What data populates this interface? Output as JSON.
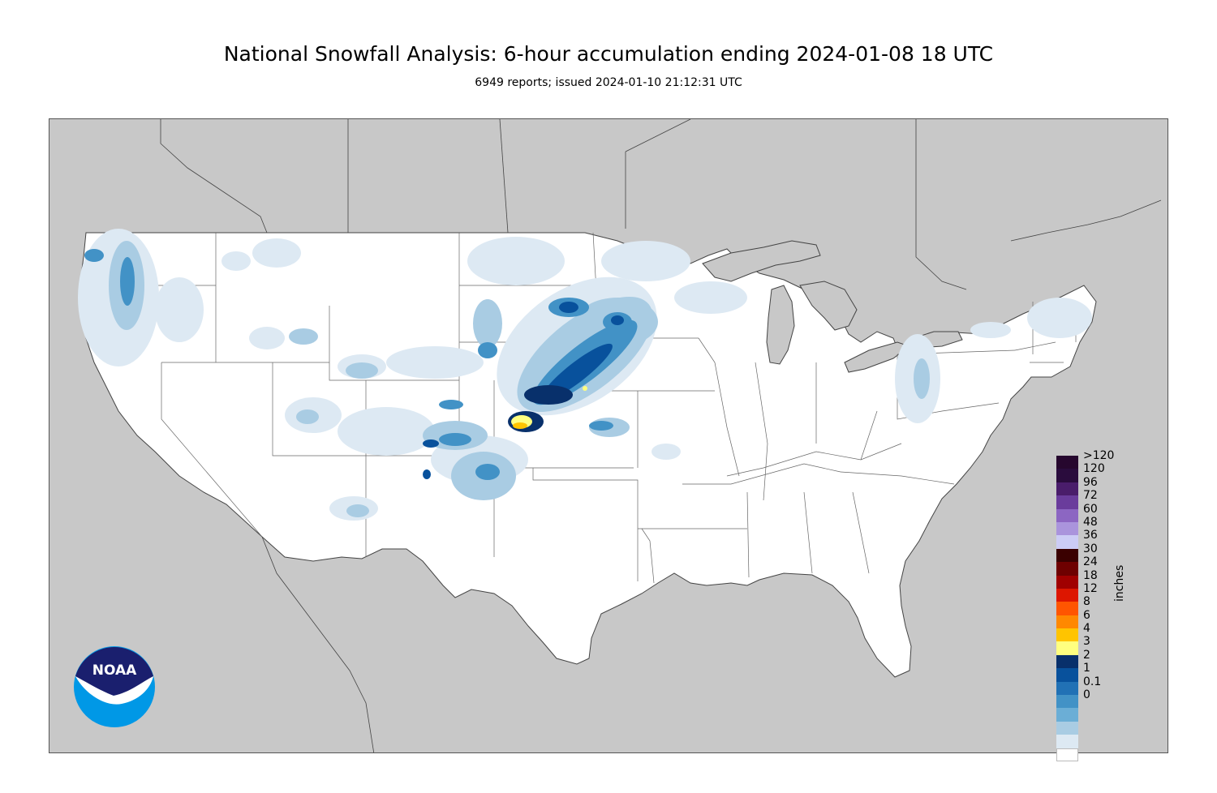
{
  "header": {
    "title": "National Snowfall Analysis: 6-hour accumulation ending 2024-01-08 18 UTC",
    "subtitle": "6949 reports; issued 2024-01-10 21:12:31 UTC"
  },
  "logo": {
    "text": "NOAA",
    "icon": "noaa-logo-icon"
  },
  "legend": {
    "units": "inches",
    "top_label": ">120",
    "levels": [
      {
        "label": "120",
        "color": "#2a0c3d"
      },
      {
        "label": "96",
        "color": "#4a1d6b"
      },
      {
        "label": "72",
        "color": "#6a3c9c"
      },
      {
        "label": "60",
        "color": "#8c66c2"
      },
      {
        "label": "48",
        "color": "#aa94dc"
      },
      {
        "label": "36",
        "color": "#ccccf5"
      },
      {
        "label": "30",
        "color": "#3a0000"
      },
      {
        "label": "24",
        "color": "#6e0000"
      },
      {
        "label": "18",
        "color": "#a00000"
      },
      {
        "label": "12",
        "color": "#dd1600"
      },
      {
        "label": "8",
        "color": "#ff5500"
      },
      {
        "label": "6",
        "color": "#ff8800"
      },
      {
        "label": "4",
        "color": "#ffc400"
      },
      {
        "label": "3",
        "color": "#ffff80"
      },
      {
        "label": "2",
        "color": "#08306b"
      },
      {
        "label": "1",
        "color": "#08519c"
      },
      {
        "label": "0.1",
        "color": "#2171b5"
      },
      {
        "label": "0",
        "color": "#4292c6"
      }
    ],
    "extra_colors": [
      "#6baed6",
      "#a9cce3",
      "#dde9f3",
      "#ffffff"
    ]
  },
  "map": {
    "background_color": "#c8c8c8",
    "land_color": "#ffffff",
    "snow_palette": [
      "#dde9f3",
      "#a9cce3",
      "#6baed6",
      "#4292c6",
      "#2171b5",
      "#08519c",
      "#08306b",
      "#ffff80",
      "#ffc400"
    ]
  }
}
